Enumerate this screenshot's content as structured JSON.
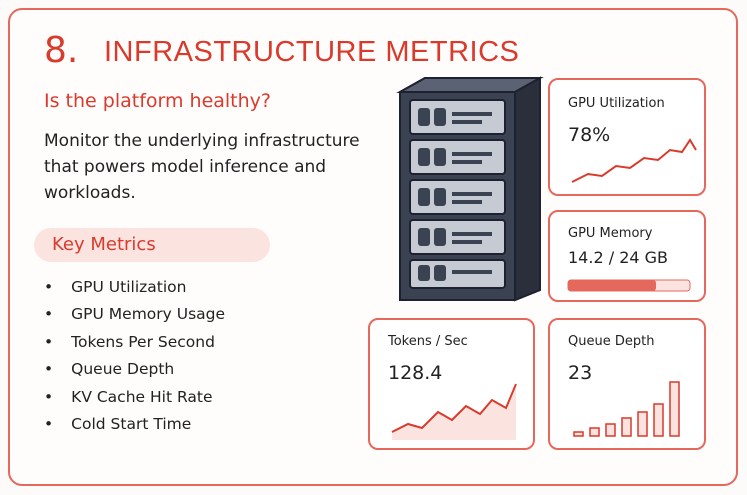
{
  "header": {
    "number": "8.",
    "title": "INFRASTRUCTURE METRICS",
    "subtitle": "Is the platform healthy?"
  },
  "description": "Monitor the underlying infrastructure that powers model inference and workloads.",
  "key_metrics": {
    "heading": "Key Metrics",
    "items": [
      "GPU Utilization",
      "GPU Memory Usage",
      "Tokens Per Second",
      "Queue Depth",
      "KV Cache Hit Rate",
      "Cold Start Time"
    ]
  },
  "cards": [
    {
      "title": "GPU Utilization",
      "value": "78%"
    },
    {
      "title": "GPU Memory",
      "value": "14.2 / 24 GB"
    },
    {
      "title": "Tokens / Sec",
      "value": "128.4"
    },
    {
      "title": "Queue Depth",
      "value": "23"
    }
  ]
}
